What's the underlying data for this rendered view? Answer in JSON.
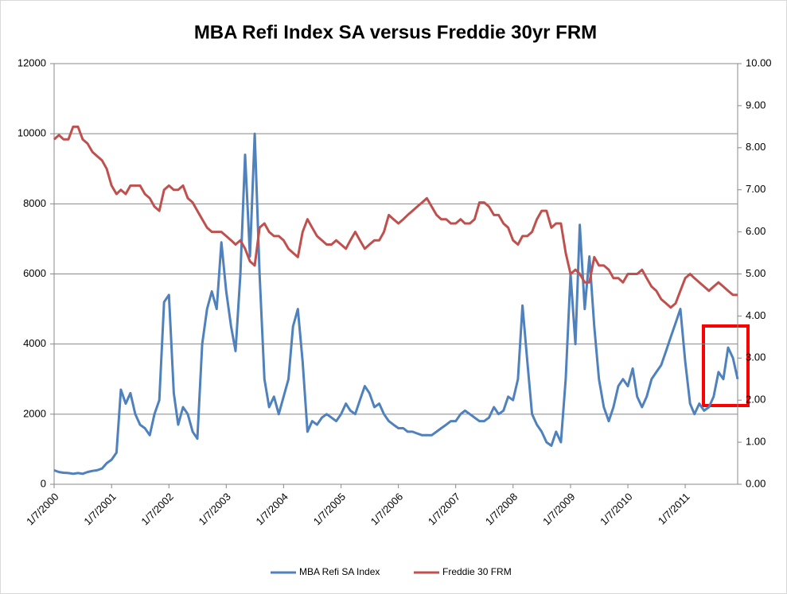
{
  "chart_data": {
    "type": "line",
    "title": "MBA Refi Index SA versus Freddie 30yr FRM",
    "x": [
      "2000-01-07",
      "2000-02-07",
      "2000-03-07",
      "2000-04-07",
      "2000-05-07",
      "2000-06-07",
      "2000-07-07",
      "2000-08-07",
      "2000-09-07",
      "2000-10-07",
      "2000-11-07",
      "2000-12-07",
      "2001-01-07",
      "2001-02-07",
      "2001-03-07",
      "2001-04-07",
      "2001-05-07",
      "2001-06-07",
      "2001-07-07",
      "2001-08-07",
      "2001-09-07",
      "2001-10-07",
      "2001-11-07",
      "2001-12-07",
      "2002-01-07",
      "2002-02-07",
      "2002-03-07",
      "2002-04-07",
      "2002-05-07",
      "2002-06-07",
      "2002-07-07",
      "2002-08-07",
      "2002-09-07",
      "2002-10-07",
      "2002-11-07",
      "2002-12-07",
      "2003-01-07",
      "2003-02-07",
      "2003-03-07",
      "2003-04-07",
      "2003-05-07",
      "2003-06-07",
      "2003-07-07",
      "2003-08-07",
      "2003-09-07",
      "2003-10-07",
      "2003-11-07",
      "2003-12-07",
      "2004-01-07",
      "2004-02-07",
      "2004-03-07",
      "2004-04-07",
      "2004-05-07",
      "2004-06-07",
      "2004-07-07",
      "2004-08-07",
      "2004-09-07",
      "2004-10-07",
      "2004-11-07",
      "2004-12-07",
      "2005-01-07",
      "2005-02-07",
      "2005-03-07",
      "2005-04-07",
      "2005-05-07",
      "2005-06-07",
      "2005-07-07",
      "2005-08-07",
      "2005-09-07",
      "2005-10-07",
      "2005-11-07",
      "2005-12-07",
      "2006-01-07",
      "2006-02-07",
      "2006-03-07",
      "2006-04-07",
      "2006-05-07",
      "2006-06-07",
      "2006-07-07",
      "2006-08-07",
      "2006-09-07",
      "2006-10-07",
      "2006-11-07",
      "2006-12-07",
      "2007-01-07",
      "2007-02-07",
      "2007-03-07",
      "2007-04-07",
      "2007-05-07",
      "2007-06-07",
      "2007-07-07",
      "2007-08-07",
      "2007-09-07",
      "2007-10-07",
      "2007-11-07",
      "2007-12-07",
      "2008-01-07",
      "2008-02-07",
      "2008-03-07",
      "2008-04-07",
      "2008-05-07",
      "2008-06-07",
      "2008-07-07",
      "2008-08-07",
      "2008-09-07",
      "2008-10-07",
      "2008-11-07",
      "2008-12-07",
      "2009-01-07",
      "2009-02-07",
      "2009-03-07",
      "2009-04-07",
      "2009-05-07",
      "2009-06-07",
      "2009-07-07",
      "2009-08-07",
      "2009-09-07",
      "2009-10-07",
      "2009-11-07",
      "2009-12-07",
      "2010-01-07",
      "2010-02-07",
      "2010-03-07",
      "2010-04-07",
      "2010-05-07",
      "2010-06-07",
      "2010-07-07",
      "2010-08-07",
      "2010-09-07",
      "2010-10-07",
      "2010-11-07",
      "2010-12-07",
      "2011-01-07",
      "2011-02-07",
      "2011-03-07",
      "2011-04-07",
      "2011-05-07",
      "2011-06-07",
      "2011-07-07",
      "2011-08-07",
      "2011-09-07",
      "2011-10-07",
      "2011-11-07",
      "2011-12-07"
    ],
    "series": [
      {
        "name": "MBA Refi SA Index",
        "color": "#4f81bd",
        "values": [
          400,
          350,
          330,
          320,
          300,
          320,
          300,
          350,
          380,
          400,
          450,
          600,
          700,
          900,
          2700,
          2300,
          2600,
          2000,
          1700,
          1600,
          1400,
          2000,
          2400,
          5200,
          5400,
          2600,
          1700,
          2200,
          2000,
          1500,
          1300,
          4000,
          5000,
          5500,
          5000,
          6900,
          5500,
          4500,
          3800,
          6000,
          9400,
          6500,
          10000,
          6000,
          3000,
          2200,
          2500,
          2000,
          2500,
          3000,
          4500,
          5000,
          3500,
          1500,
          1800,
          1700,
          1900,
          2000,
          1900,
          1800,
          2000,
          2300,
          2100,
          2000,
          2400,
          2800,
          2600,
          2200,
          2300,
          2000,
          1800,
          1700,
          1600,
          1600,
          1500,
          1500,
          1450,
          1400,
          1400,
          1400,
          1500,
          1600,
          1700,
          1800,
          1800,
          2000,
          2100,
          2000,
          1900,
          1800,
          1800,
          1900,
          2200,
          2000,
          2100,
          2500,
          2400,
          3000,
          5100,
          3500,
          2000,
          1700,
          1500,
          1200,
          1100,
          1500,
          1200,
          3000,
          6000,
          4000,
          7400,
          5000,
          6500,
          4500,
          3000,
          2200,
          1800,
          2200,
          2800,
          3000,
          2800,
          3300,
          2500,
          2200,
          2500,
          3000,
          3200,
          3400,
          3800,
          4200,
          4600,
          5000,
          3500,
          2300,
          2000,
          2300,
          2100,
          2200,
          2500,
          3200,
          3000,
          3900,
          3600,
          3000
        ]
      },
      {
        "name": "Freddie 30 FRM",
        "color": "#c0504d",
        "axis": "y2",
        "values": [
          8.2,
          8.3,
          8.2,
          8.2,
          8.5,
          8.5,
          8.2,
          8.1,
          7.9,
          7.8,
          7.7,
          7.5,
          7.1,
          6.9,
          7.0,
          6.9,
          7.1,
          7.1,
          7.1,
          6.9,
          6.8,
          6.6,
          6.5,
          7.0,
          7.1,
          7.0,
          7.0,
          7.1,
          6.8,
          6.7,
          6.5,
          6.3,
          6.1,
          6.0,
          6.0,
          6.0,
          5.9,
          5.8,
          5.7,
          5.8,
          5.6,
          5.3,
          5.2,
          6.1,
          6.2,
          6.0,
          5.9,
          5.9,
          5.8,
          5.6,
          5.5,
          5.4,
          6.0,
          6.3,
          6.1,
          5.9,
          5.8,
          5.7,
          5.7,
          5.8,
          5.7,
          5.6,
          5.8,
          6.0,
          5.8,
          5.6,
          5.7,
          5.8,
          5.8,
          6.0,
          6.4,
          6.3,
          6.2,
          6.3,
          6.4,
          6.5,
          6.6,
          6.7,
          6.8,
          6.6,
          6.4,
          6.3,
          6.3,
          6.2,
          6.2,
          6.3,
          6.2,
          6.2,
          6.3,
          6.7,
          6.7,
          6.6,
          6.4,
          6.4,
          6.2,
          6.1,
          5.8,
          5.7,
          5.9,
          5.9,
          6.0,
          6.3,
          6.5,
          6.5,
          6.1,
          6.2,
          6.2,
          5.5,
          5.0,
          5.1,
          5.0,
          4.8,
          4.8,
          5.4,
          5.2,
          5.2,
          5.1,
          4.9,
          4.9,
          4.8,
          5.0,
          5.0,
          5.0,
          5.1,
          4.9,
          4.7,
          4.6,
          4.4,
          4.3,
          4.2,
          4.3,
          4.6,
          4.9,
          5.0,
          4.9,
          4.8,
          4.7,
          4.6,
          4.7,
          4.8,
          4.7,
          4.6,
          4.5,
          4.5
        ]
      }
    ],
    "xlim": [
      "2000-01-07",
      "2011-12-07"
    ],
    "xticks": [
      {
        "value": "2000-01-07",
        "label": "1/7/2000"
      },
      {
        "value": "2001-01-07",
        "label": "1/7/2001"
      },
      {
        "value": "2002-01-07",
        "label": "1/7/2002"
      },
      {
        "value": "2003-01-07",
        "label": "1/7/2003"
      },
      {
        "value": "2004-01-07",
        "label": "1/7/2004"
      },
      {
        "value": "2005-01-07",
        "label": "1/7/2005"
      },
      {
        "value": "2006-01-07",
        "label": "1/7/2006"
      },
      {
        "value": "2007-01-07",
        "label": "1/7/2007"
      },
      {
        "value": "2008-01-07",
        "label": "1/7/2008"
      },
      {
        "value": "2009-01-07",
        "label": "1/7/2009"
      },
      {
        "value": "2010-01-07",
        "label": "1/7/2010"
      },
      {
        "value": "2011-01-07",
        "label": "1/7/2011"
      }
    ],
    "ylim": [
      0,
      12000
    ],
    "yticks": [
      0,
      2000,
      4000,
      6000,
      8000,
      10000,
      12000
    ],
    "y2lim": [
      0,
      10
    ],
    "y2ticks": [
      {
        "value": 0,
        "label": "0.00"
      },
      {
        "value": 1,
        "label": "1.00"
      },
      {
        "value": 2,
        "label": "2.00"
      },
      {
        "value": 3,
        "label": "3.00"
      },
      {
        "value": 4,
        "label": "4.00"
      },
      {
        "value": 5,
        "label": "5.00"
      },
      {
        "value": 6,
        "label": "6.00"
      },
      {
        "value": 7,
        "label": "7.00"
      },
      {
        "value": 8,
        "label": "8.00"
      },
      {
        "value": 9,
        "label": "9.00"
      },
      {
        "value": 10,
        "label": "10.00"
      }
    ],
    "grid": true,
    "legend": "bottom"
  }
}
